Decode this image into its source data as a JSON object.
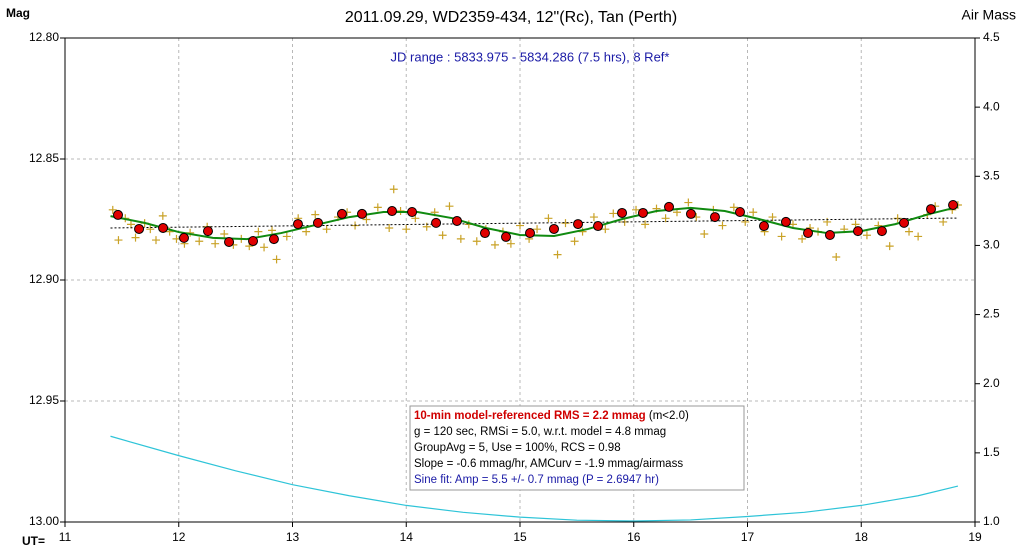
{
  "chart_data": {
    "type": "line",
    "title": "2011.09.29, WD2359-434, 12\"(Rc), Tan (Perth)",
    "subtitle": "JD range : 5833.975 - 5834.286 (7.5 hrs), 8 Ref*",
    "y_label": "Mag",
    "y2_label": "Air Mass",
    "x_label": "UT=",
    "xlim": [
      11,
      19
    ],
    "xticks": [
      11,
      12,
      13,
      14,
      15,
      16,
      17,
      18,
      19
    ],
    "ylim": [
      12.8,
      13.0
    ],
    "y_inverted": true,
    "yticks": [
      {
        "value": 12.8,
        "label": "12.80"
      },
      {
        "value": 12.85,
        "label": "12.85"
      },
      {
        "value": 12.9,
        "label": "12.90"
      },
      {
        "value": 12.95,
        "label": "12.95"
      },
      {
        "value": 13.0,
        "label": "13.00"
      }
    ],
    "y2lim": [
      1.0,
      4.5
    ],
    "y2ticks": [
      {
        "value": 1.0,
        "label": "1.0"
      },
      1.5,
      {
        "value": 2.0,
        "label": "2.0"
      },
      2.5,
      {
        "value": 3.0,
        "label": "3.0"
      },
      3.5,
      {
        "value": 4.0,
        "label": "4.0"
      },
      4.5
    ],
    "grid": true,
    "stats_box": {
      "headline": "10-min model-referenced RMS = 2.2 mmag",
      "headline_note": "(m<2.0)",
      "lines": [
        "g = 120 sec, RMSi = 5.0, w.r.t. model = 4.8 mmag",
        "GroupAvg  = 5, Use = 100%, RCS = 0.98",
        "Slope = -0.6 mmag/hr, AMCurv = -1.9 mmag/airmass"
      ],
      "fit": "Sine fit: Amp = 5.5 +/- 0.7 mmag (P = 2.6947 hr)"
    },
    "series": [
      {
        "marker": "plus",
        "color": "#c9a227",
        "x": [
          11.42,
          11.47,
          11.53,
          11.58,
          11.62,
          11.7,
          11.75,
          11.8,
          11.86,
          11.92,
          11.98,
          12.05,
          12.1,
          12.18,
          12.25,
          12.32,
          12.4,
          12.48,
          12.55,
          12.62,
          12.7,
          12.75,
          12.82,
          12.86,
          12.95,
          13.05,
          13.12,
          13.2,
          13.3,
          13.4,
          13.48,
          13.55,
          13.65,
          13.75,
          13.85,
          13.89,
          13.95,
          14.0,
          14.08,
          14.18,
          14.25,
          14.32,
          14.38,
          14.48,
          14.55,
          14.62,
          14.7,
          14.78,
          14.85,
          14.92,
          15.0,
          15.08,
          15.15,
          15.25,
          15.33,
          15.4,
          15.48,
          15.55,
          15.65,
          15.75,
          15.82,
          15.92,
          16.02,
          16.1,
          16.2,
          16.28,
          16.38,
          16.48,
          16.55,
          16.62,
          16.7,
          16.78,
          16.88,
          16.98,
          17.05,
          17.15,
          17.22,
          17.3,
          17.4,
          17.48,
          17.55,
          17.62,
          17.7,
          17.78,
          17.85,
          17.95,
          18.05,
          18.15,
          18.25,
          18.32,
          18.42,
          18.5,
          18.58,
          18.65,
          18.72,
          18.8,
          18.85
        ],
        "values": [
          12.871,
          12.8835,
          12.8745,
          12.877,
          12.8825,
          12.8765,
          12.879,
          12.8835,
          12.8735,
          12.88,
          12.883,
          12.885,
          12.8805,
          12.884,
          12.878,
          12.885,
          12.881,
          12.8855,
          12.883,
          12.886,
          12.88,
          12.8865,
          12.8795,
          12.8915,
          12.882,
          12.8745,
          12.88,
          12.873,
          12.879,
          12.874,
          12.872,
          12.8775,
          12.875,
          12.87,
          12.8785,
          12.8625,
          12.8715,
          12.879,
          12.8745,
          12.878,
          12.872,
          12.8815,
          12.8695,
          12.883,
          12.877,
          12.884,
          12.879,
          12.8855,
          12.88,
          12.885,
          12.8775,
          12.883,
          12.879,
          12.8745,
          12.8895,
          12.8765,
          12.884,
          12.88,
          12.874,
          12.879,
          12.8725,
          12.876,
          12.871,
          12.877,
          12.8705,
          12.8745,
          12.872,
          12.868,
          12.874,
          12.881,
          12.871,
          12.8775,
          12.87,
          12.876,
          12.872,
          12.88,
          12.874,
          12.882,
          12.877,
          12.883,
          12.8785,
          12.88,
          12.876,
          12.8905,
          12.879,
          12.877,
          12.8815,
          12.8775,
          12.886,
          12.8745,
          12.88,
          12.882,
          12.873,
          12.8695,
          12.876,
          12.871,
          12.869
        ]
      },
      {
        "marker": "none",
        "dash": true,
        "color": "#000000",
        "x": [
          11.4,
          18.85
        ],
        "values": [
          12.8785,
          12.8744
        ]
      },
      {
        "marker": "none",
        "color": "#108a10",
        "x": [
          11.4,
          11.7,
          12.0,
          12.3,
          12.6,
          12.9,
          13.2,
          13.5,
          13.8,
          14.1,
          14.4,
          14.7,
          15.0,
          15.3,
          15.6,
          15.9,
          16.2,
          16.5,
          16.8,
          17.1,
          17.4,
          17.7,
          18.0,
          18.3,
          18.6,
          18.85
        ],
        "values": [
          12.8736,
          12.8764,
          12.8802,
          12.8826,
          12.8831,
          12.8806,
          12.8773,
          12.874,
          12.8719,
          12.8719,
          12.8744,
          12.8785,
          12.8814,
          12.8818,
          12.8789,
          12.8748,
          12.8715,
          12.8702,
          12.8715,
          12.8748,
          12.8785,
          12.8806,
          12.8798,
          12.8769,
          12.8727,
          12.8698
        ]
      },
      {
        "marker": "circle",
        "color": "#e00000",
        "x": [
          11.466,
          11.651,
          11.862,
          12.046,
          12.257,
          12.442,
          12.653,
          12.837,
          13.048,
          13.224,
          13.435,
          13.611,
          13.875,
          14.051,
          14.262,
          14.446,
          14.692,
          14.877,
          15.088,
          15.299,
          15.51,
          15.686,
          15.897,
          16.081,
          16.31,
          16.503,
          16.714,
          16.934,
          17.145,
          17.338,
          17.532,
          17.725,
          17.971,
          18.182,
          18.376,
          18.613,
          18.807
        ],
        "values": [
          12.8731,
          12.8789,
          12.8785,
          12.8826,
          12.8798,
          12.8843,
          12.8839,
          12.8831,
          12.8769,
          12.8764,
          12.8727,
          12.8727,
          12.8715,
          12.8719,
          12.8764,
          12.8756,
          12.8806,
          12.8822,
          12.8806,
          12.8789,
          12.8769,
          12.8777,
          12.8723,
          12.8723,
          12.8698,
          12.8727,
          12.874,
          12.8719,
          12.8777,
          12.876,
          12.8806,
          12.8814,
          12.8798,
          12.8798,
          12.8764,
          12.8707,
          12.869
        ]
      },
      {
        "marker": "none",
        "axis": "y2",
        "color": "#2ec4d8",
        "x": [
          11.4,
          12.0,
          12.5,
          13.0,
          13.5,
          14.0,
          14.5,
          15.0,
          15.5,
          16.0,
          16.5,
          17.0,
          17.5,
          18.0,
          18.5,
          18.85
        ],
        "values": [
          1.62,
          1.48,
          1.37,
          1.27,
          1.19,
          1.12,
          1.07,
          1.035,
          1.013,
          1.007,
          1.015,
          1.04,
          1.07,
          1.12,
          1.19,
          1.26
        ]
      }
    ]
  }
}
